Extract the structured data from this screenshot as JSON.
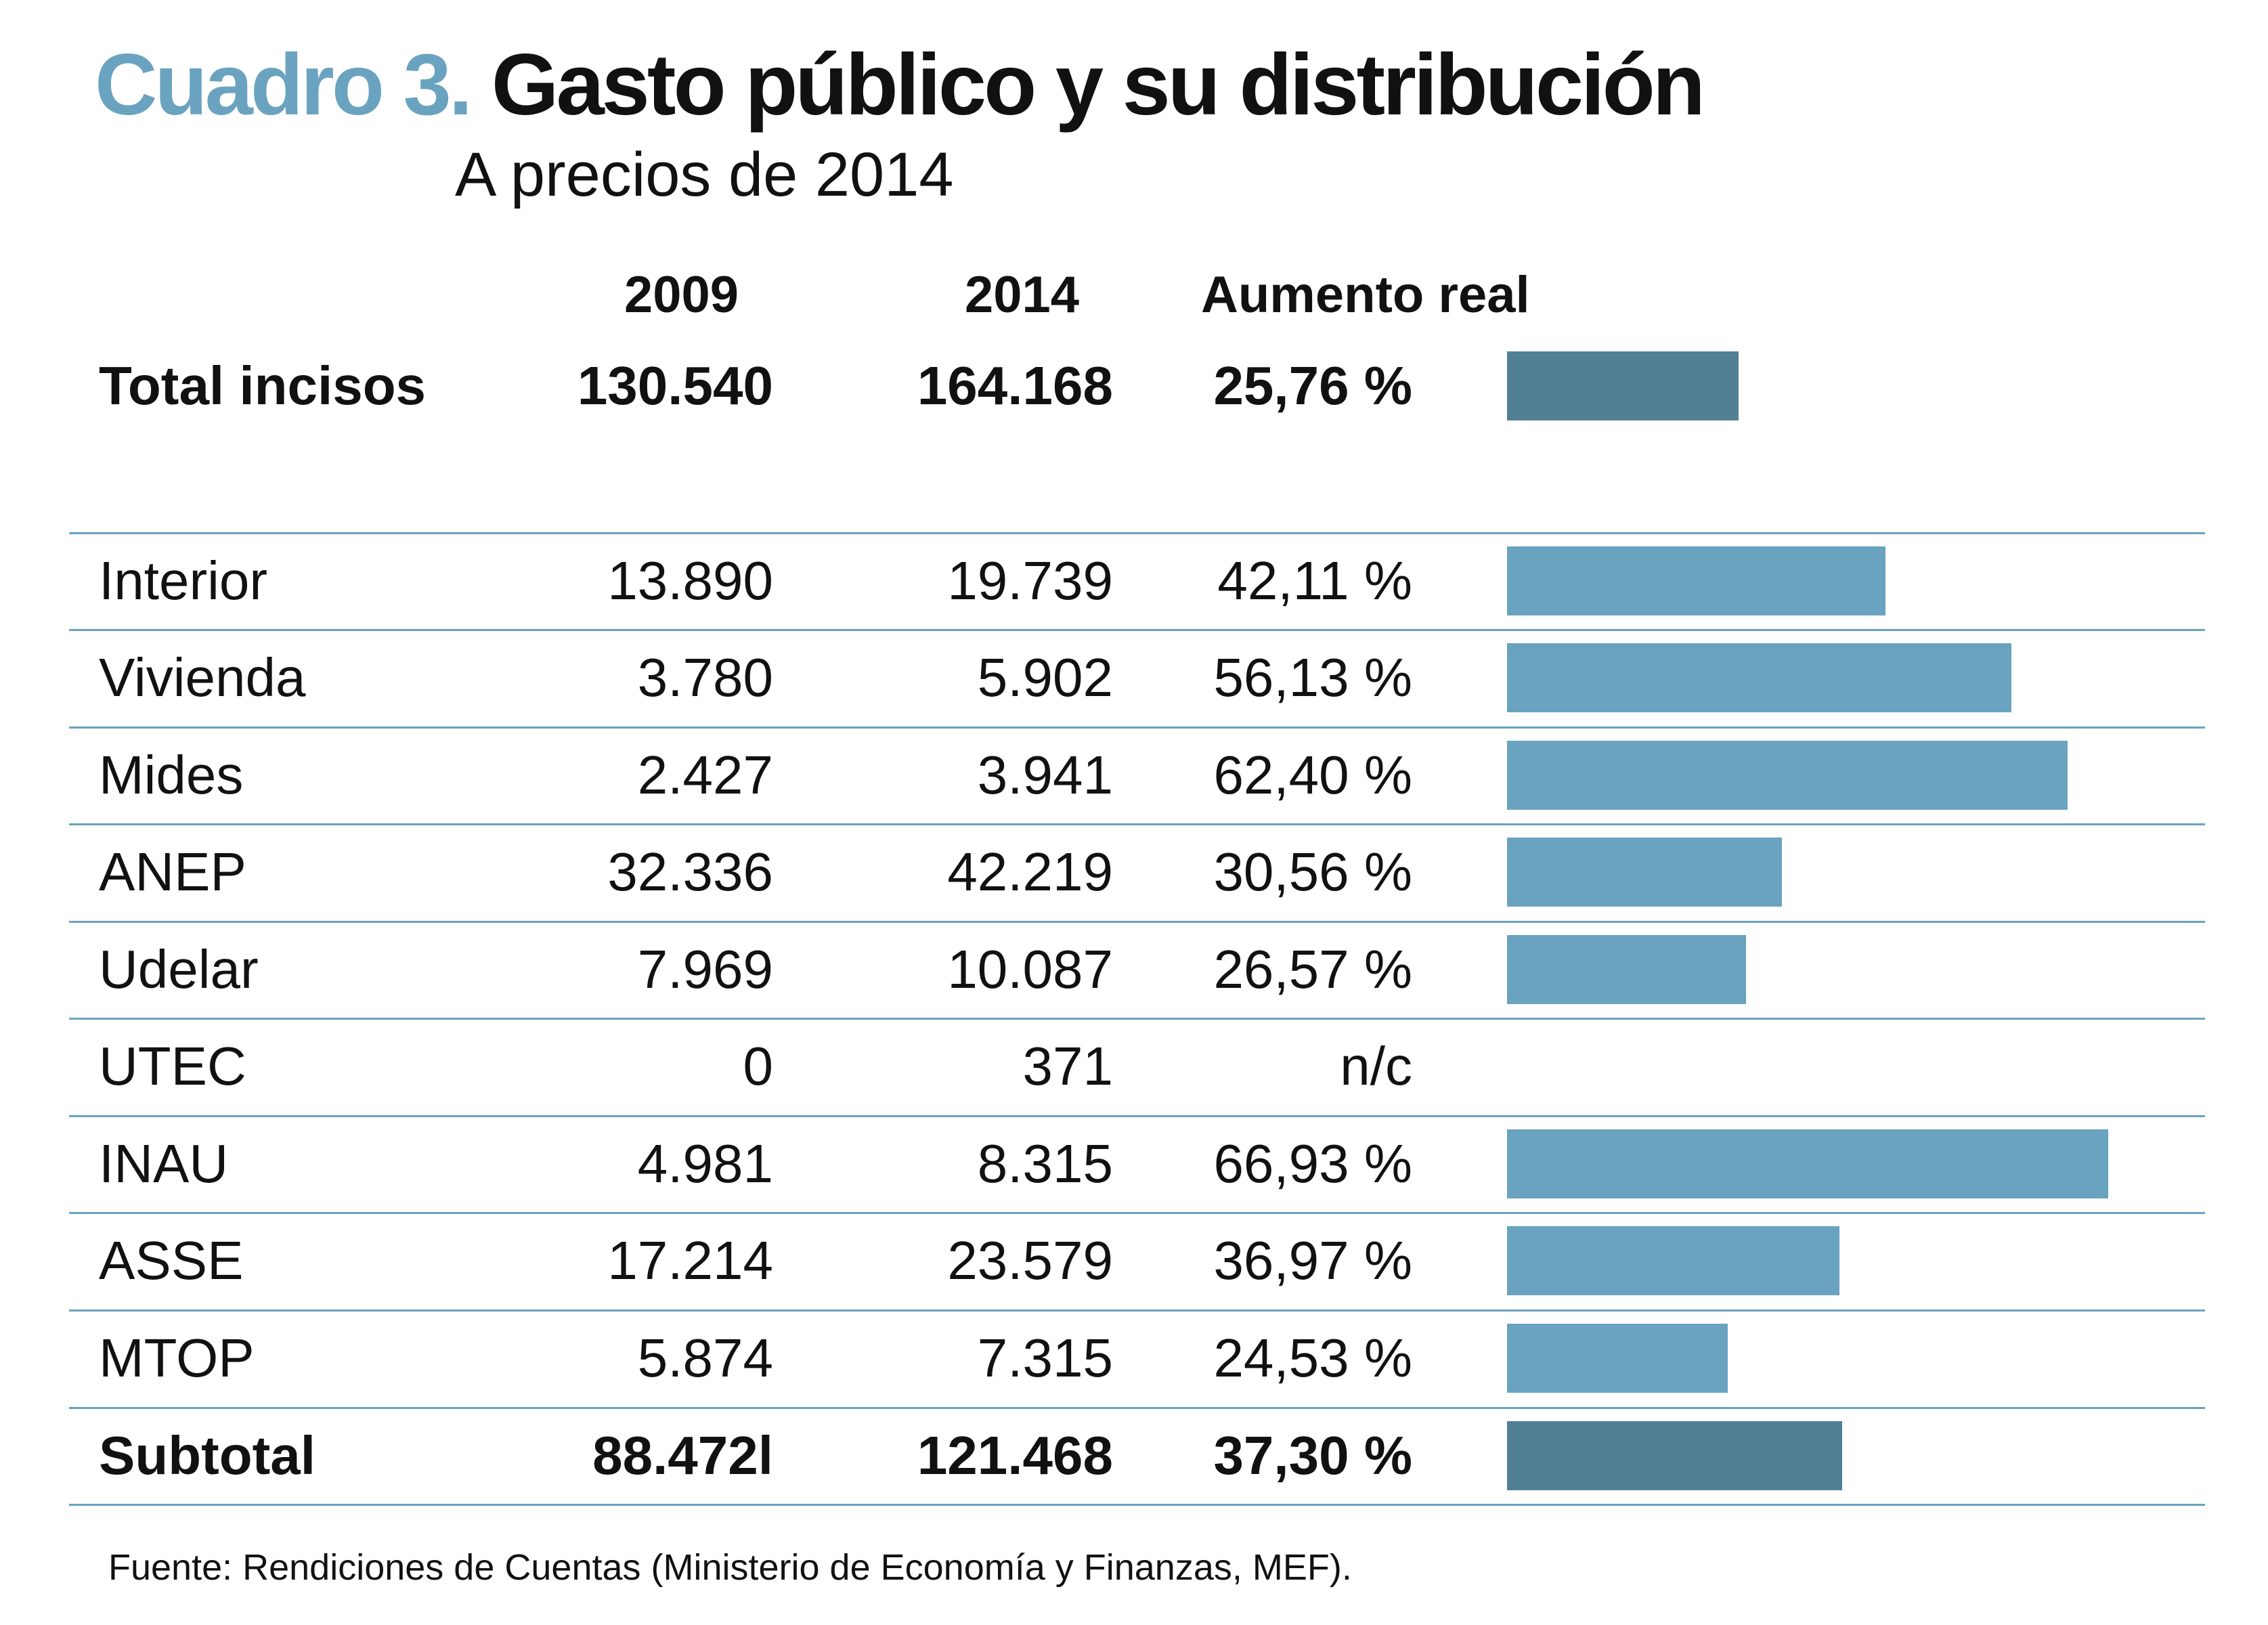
{
  "title": {
    "lead": "Cuadro 3.",
    "rest": "Gasto público y su distribución"
  },
  "subtitle": "A precios de 2014",
  "source": "Fuente: Rendiciones de Cuentas (Ministerio de Economía y Finanzas, MEF).",
  "colors": {
    "accent": "#6aa3bf",
    "bar": "#69a3bf",
    "bar_total": "#517f94",
    "rule": "#6aa3bf"
  },
  "chart_data": {
    "type": "table",
    "columns": [
      "2009",
      "2014",
      "Aumento real"
    ],
    "total": {
      "label": "Total incisos",
      "v2009": "130.540",
      "v2014": "164.168",
      "increase": "25,76 %",
      "increase_value": 25.76
    },
    "rows": [
      {
        "label": "Interior",
        "v2009": "13.890",
        "v2014": "19.739",
        "increase": "42,11 %",
        "increase_value": 42.11
      },
      {
        "label": "Vivienda",
        "v2009": "3.780",
        "v2014": "5.902",
        "increase": "56,13 %",
        "increase_value": 56.13
      },
      {
        "label": "Mides",
        "v2009": "2.427",
        "v2014": "3.941",
        "increase": "62,40 %",
        "increase_value": 62.4
      },
      {
        "label": "ANEP",
        "v2009": "32.336",
        "v2014": "42.219",
        "increase": "30,56 %",
        "increase_value": 30.56
      },
      {
        "label": "Udelar",
        "v2009": "7.969",
        "v2014": "10.087",
        "increase": "26,57 %",
        "increase_value": 26.57
      },
      {
        "label": "UTEC",
        "v2009": "0",
        "v2014": "371",
        "increase": "n/c",
        "increase_value": null
      },
      {
        "label": "INAU",
        "v2009": "4.981",
        "v2014": "8.315",
        "increase": "66,93 %",
        "increase_value": 66.93
      },
      {
        "label": "ASSE",
        "v2009": "17.214",
        "v2014": "23.579",
        "increase": "36,97 %",
        "increase_value": 36.97
      },
      {
        "label": "MTOP",
        "v2009": "5.874",
        "v2014": "7.315",
        "increase": "24,53 %",
        "increase_value": 24.53
      }
    ],
    "subtotal": {
      "label": "Subtotal",
      "v2009": "88.472l",
      "v2014": "121.468",
      "increase": "37,30 %",
      "increase_value": 37.3
    }
  }
}
